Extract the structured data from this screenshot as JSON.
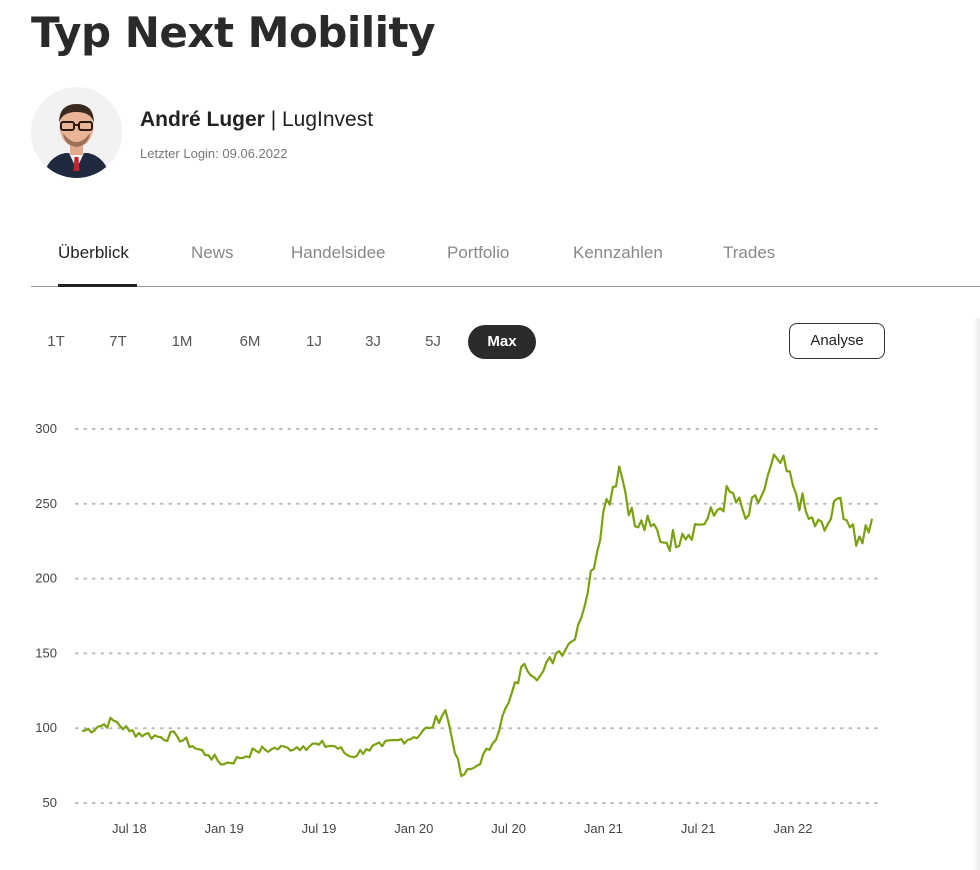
{
  "page": {
    "title": "Typ Next Mobility"
  },
  "author": {
    "name": "André Luger",
    "separator": "|",
    "company": "LugInvest",
    "last_login": "Letzter Login: 09.06.2022"
  },
  "tabs": [
    {
      "label": "Überblick",
      "active": true
    },
    {
      "label": "News",
      "active": false
    },
    {
      "label": "Handelsidee",
      "active": false
    },
    {
      "label": "Portfolio",
      "active": false
    },
    {
      "label": "Kennzahlen",
      "active": false
    },
    {
      "label": "Trades",
      "active": false
    }
  ],
  "ranges": [
    {
      "label": "1T",
      "active": false
    },
    {
      "label": "7T",
      "active": false
    },
    {
      "label": "1M",
      "active": false
    },
    {
      "label": "6M",
      "active": false
    },
    {
      "label": "1J",
      "active": false
    },
    {
      "label": "3J",
      "active": false
    },
    {
      "label": "5J",
      "active": false
    },
    {
      "label": "Max",
      "active": true
    }
  ],
  "analyse_label": "Analyse",
  "chart_data": {
    "type": "line",
    "title": "",
    "xlabel": "",
    "ylabel": "",
    "ylim": [
      50,
      300
    ],
    "yticks": [
      300,
      250,
      200,
      150,
      100,
      50
    ],
    "xticks": [
      "Jul 18",
      "Jan 19",
      "Jul 19",
      "Jan 20",
      "Jul 20",
      "Jan 21",
      "Jul 21",
      "Jan 22"
    ],
    "grid": "horizontal dotted",
    "line_color": "#7ba110",
    "series": [
      {
        "x": [
          "2018-04",
          "2018-05",
          "2018-06",
          "2018-07",
          "2018-08",
          "2018-09",
          "2018-10",
          "2018-11",
          "2018-12",
          "2019-01",
          "2019-02",
          "2019-03",
          "2019-04",
          "2019-05",
          "2019-06",
          "2019-07",
          "2019-08",
          "2019-09",
          "2019-10",
          "2019-11",
          "2019-12",
          "2020-01",
          "2020-02",
          "2020-03",
          "2020-04",
          "2020-05",
          "2020-06",
          "2020-07",
          "2020-08",
          "2020-09",
          "2020-10",
          "2020-11",
          "2020-12",
          "2021-01",
          "2021-02",
          "2021-03",
          "2021-04",
          "2021-05",
          "2021-06",
          "2021-07",
          "2021-08",
          "2021-09",
          "2021-10",
          "2021-11",
          "2021-12",
          "2022-01",
          "2022-02",
          "2022-03",
          "2022-04",
          "2022-05",
          "2022-06"
        ],
        "values": [
          98,
          101,
          105,
          98,
          96,
          94,
          95,
          88,
          82,
          76,
          80,
          85,
          86,
          87,
          88,
          89,
          88,
          81,
          86,
          88,
          92,
          94,
          100,
          112,
          68,
          75,
          90,
          117,
          143,
          135,
          150,
          158,
          190,
          245,
          275,
          235,
          235,
          224,
          230,
          236,
          242,
          258,
          240,
          255,
          280,
          262,
          240,
          232,
          254,
          222,
          240
        ]
      }
    ]
  }
}
